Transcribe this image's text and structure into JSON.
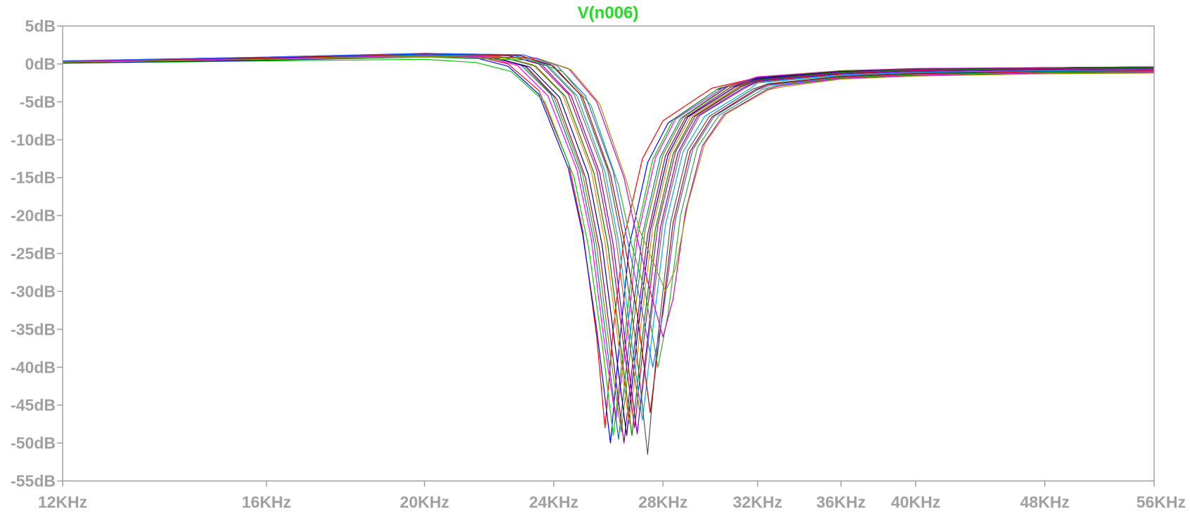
{
  "chart_data": {
    "type": "line",
    "title": "V(n006)",
    "xlabel": "",
    "ylabel": "",
    "x_scale": "log",
    "x_unit": "Hz",
    "xlim": [
      12000,
      56000
    ],
    "ylim": [
      -55,
      5
    ],
    "y_unit": "dB",
    "grid": false,
    "legend": "none",
    "x_tick_values": [
      12000,
      16000,
      20000,
      24000,
      28000,
      32000,
      36000,
      40000,
      48000,
      56000
    ],
    "x_tick_labels": [
      "12KHz",
      "16KHz",
      "20KHz",
      "24KHz",
      "28KHz",
      "32KHz",
      "36KHz",
      "40KHz",
      "48KHz",
      "56KHz"
    ],
    "y_tick_values": [
      5,
      0,
      -5,
      -10,
      -15,
      -20,
      -25,
      -30,
      -35,
      -40,
      -45,
      -50,
      -55
    ],
    "y_tick_labels": [
      "5dB",
      "0dB",
      "-5dB",
      "-10dB",
      "-15dB",
      "-20dB",
      "-25dB",
      "-30dB",
      "-35dB",
      "-40dB",
      "-45dB",
      "-50dB",
      "-55dB"
    ],
    "series_colors": [
      "#ff0000",
      "#0000ff",
      "#00cc00",
      "#ff00ff",
      "#008080",
      "#808000",
      "#800080",
      "#000080",
      "#ff8000",
      "#008000",
      "#cc0066",
      "#6600cc",
      "#996633",
      "#00aaff",
      "#555555",
      "#aa0000",
      "#3366ff",
      "#33aa33",
      "#cc00cc",
      "#999900"
    ],
    "series": [
      {
        "x": [
          12000,
          16000,
          20000,
          21500,
          22500,
          23500,
          24500,
          25000,
          25500,
          25800,
          26100,
          26500,
          27200,
          28000,
          30000,
          32000,
          36000,
          40000,
          48000,
          56000
        ],
        "y": [
          0.3,
          0.7,
          1.1,
          1.0,
          0.0,
          -3.5,
          -13.0,
          -22.0,
          -36.0,
          -48.0,
          -35.0,
          -23.0,
          -12.5,
          -7.5,
          -3.2,
          -1.8,
          -1.0,
          -0.7,
          -0.5,
          -0.4
        ]
      },
      {
        "x": [
          12000,
          16000,
          20000,
          21500,
          22500,
          23500,
          24500,
          25000,
          25500,
          26000,
          26300,
          26700,
          27400,
          28200,
          30200,
          32000,
          36000,
          40000,
          48000,
          56000
        ],
        "y": [
          0.2,
          0.6,
          1.0,
          0.8,
          -0.3,
          -4.0,
          -13.8,
          -22.5,
          -35.0,
          -50.0,
          -38.0,
          -24.0,
          -13.0,
          -7.8,
          -3.4,
          -1.9,
          -1.0,
          -0.7,
          -0.6,
          -0.5
        ]
      },
      {
        "x": [
          12000,
          16000,
          20000,
          21500,
          22600,
          23700,
          24700,
          25200,
          25700,
          26100,
          26500,
          26900,
          27600,
          28400,
          30300,
          32000,
          36000,
          40000,
          48000,
          56000
        ],
        "y": [
          0.1,
          0.4,
          0.6,
          0.2,
          -1.0,
          -5.0,
          -15.0,
          -24.0,
          -37.0,
          -49.0,
          -37.0,
          -23.5,
          -12.6,
          -7.4,
          -3.2,
          -1.8,
          -0.9,
          -0.6,
          -0.5,
          -0.4
        ]
      },
      {
        "x": [
          12000,
          16000,
          20000,
          21700,
          22800,
          23800,
          24800,
          25300,
          25800,
          26200,
          26600,
          27000,
          27700,
          28500,
          30500,
          32000,
          36000,
          40000,
          48000,
          56000
        ],
        "y": [
          0.4,
          0.8,
          1.2,
          1.0,
          -0.2,
          -4.2,
          -14.0,
          -23.0,
          -37.5,
          -47.0,
          -36.0,
          -23.0,
          -12.4,
          -7.3,
          -3.1,
          -1.7,
          -0.9,
          -0.6,
          -0.5,
          -0.4
        ]
      },
      {
        "x": [
          12000,
          16000,
          20000,
          21800,
          22900,
          23900,
          24900,
          25400,
          25900,
          26300,
          26700,
          27200,
          27900,
          28700,
          30600,
          32000,
          36000,
          40000,
          48000,
          56000
        ],
        "y": [
          0.2,
          0.6,
          1.1,
          1.0,
          -0.1,
          -4.0,
          -14.2,
          -23.5,
          -38.0,
          -49.5,
          -36.5,
          -22.5,
          -12.2,
          -7.2,
          -3.1,
          -1.8,
          -0.9,
          -0.7,
          -0.5,
          -0.4
        ]
      },
      {
        "x": [
          12000,
          16000,
          20000,
          21900,
          23000,
          24000,
          25000,
          25500,
          26000,
          26400,
          26800,
          27300,
          28000,
          28800,
          30700,
          32000,
          36000,
          40000,
          48000,
          56000
        ],
        "y": [
          0.3,
          0.7,
          1.2,
          1.0,
          -0.2,
          -4.3,
          -14.5,
          -24.0,
          -38.5,
          -48.5,
          -36.0,
          -22.0,
          -12.0,
          -7.1,
          -3.0,
          -1.8,
          -0.9,
          -0.7,
          -0.5,
          -0.4
        ]
      },
      {
        "x": [
          12000,
          16000,
          20000,
          22000,
          23100,
          24100,
          25100,
          25600,
          26100,
          26500,
          26900,
          27400,
          28100,
          28900,
          30800,
          32000,
          36000,
          40000,
          48000,
          56000
        ],
        "y": [
          0.2,
          0.6,
          1.0,
          0.9,
          -0.4,
          -4.6,
          -15.0,
          -24.5,
          -39.0,
          -50.0,
          -37.0,
          -22.5,
          -12.1,
          -7.1,
          -3.1,
          -1.8,
          -1.0,
          -0.7,
          -0.5,
          -0.4
        ]
      },
      {
        "x": [
          12000,
          16000,
          20000,
          22100,
          23200,
          24200,
          25200,
          25700,
          26200,
          26600,
          27000,
          27500,
          28200,
          29000,
          31000,
          32000,
          36000,
          40000,
          48000,
          56000
        ],
        "y": [
          0.1,
          0.5,
          0.9,
          0.8,
          -0.4,
          -4.4,
          -14.6,
          -24.0,
          -38.0,
          -49.0,
          -36.0,
          -22.0,
          -12.0,
          -7.0,
          -3.0,
          -2.0,
          -1.0,
          -0.8,
          -0.6,
          -0.5
        ]
      },
      {
        "x": [
          12000,
          16000,
          20000,
          22200,
          23300,
          24300,
          25300,
          25800,
          26300,
          26700,
          27100,
          27600,
          28300,
          29100,
          31100,
          32000,
          36000,
          40000,
          48000,
          56000
        ],
        "y": [
          0.3,
          0.7,
          1.1,
          1.0,
          -0.1,
          -4.0,
          -14.0,
          -23.5,
          -37.0,
          -47.5,
          -35.5,
          -21.5,
          -11.8,
          -7.0,
          -3.0,
          -2.1,
          -1.1,
          -0.8,
          -0.6,
          -0.5
        ]
      },
      {
        "x": [
          12000,
          16000,
          20000,
          22300,
          23400,
          24400,
          25400,
          25900,
          26400,
          26800,
          27200,
          27700,
          28400,
          29200,
          31200,
          32000,
          36000,
          40000,
          48000,
          56000
        ],
        "y": [
          0.2,
          0.6,
          1.0,
          0.9,
          -0.3,
          -4.3,
          -14.4,
          -23.8,
          -38.0,
          -49.0,
          -36.0,
          -21.8,
          -11.9,
          -7.0,
          -3.0,
          -2.1,
          -1.1,
          -0.8,
          -0.6,
          -0.5
        ]
      },
      {
        "x": [
          12000,
          16000,
          20000,
          22400,
          23500,
          24500,
          25500,
          26000,
          26500,
          26900,
          27300,
          27800,
          28500,
          29300,
          31300,
          32000,
          36000,
          40000,
          48000,
          56000
        ],
        "y": [
          0.3,
          0.8,
          1.3,
          1.2,
          0.0,
          -4.0,
          -14.0,
          -23.5,
          -37.5,
          -48.0,
          -35.0,
          -21.2,
          -11.6,
          -6.9,
          -3.0,
          -2.2,
          -1.2,
          -0.9,
          -0.7,
          -0.6
        ]
      },
      {
        "x": [
          12000,
          16000,
          20000,
          22500,
          23600,
          24600,
          25600,
          26100,
          26600,
          27000,
          27400,
          27900,
          28600,
          29400,
          31400,
          32000,
          36000,
          40000,
          48000,
          56000
        ],
        "y": [
          0.2,
          0.7,
          1.2,
          1.1,
          -0.1,
          -4.2,
          -14.3,
          -23.8,
          -38.2,
          -48.8,
          -36.2,
          -21.6,
          -11.7,
          -6.9,
          -3.1,
          -2.3,
          -1.3,
          -1.0,
          -0.8,
          -0.7
        ]
      },
      {
        "x": [
          12000,
          16000,
          20000,
          22600,
          23700,
          24700,
          25700,
          26200,
          26700,
          27100,
          27500,
          28000,
          28700,
          29500,
          31500,
          32000,
          36000,
          40000,
          48000,
          56000
        ],
        "y": [
          0.3,
          0.8,
          1.3,
          1.2,
          0.0,
          -4.0,
          -13.8,
          -23.0,
          -36.5,
          -46.0,
          -34.5,
          -21.0,
          -11.5,
          -6.8,
          -3.1,
          -2.4,
          -1.4,
          -1.1,
          -0.9,
          -0.8
        ]
      },
      {
        "x": [
          12000,
          16000,
          20000,
          22700,
          23800,
          24800,
          25800,
          26300,
          26800,
          27200,
          27600,
          28100,
          28800,
          29700,
          31700,
          32000,
          36000,
          40000,
          48000,
          56000
        ],
        "y": [
          0.2,
          0.7,
          1.2,
          1.1,
          -0.2,
          -4.2,
          -14.2,
          -23.5,
          -37.0,
          -47.0,
          -35.0,
          -21.2,
          -11.6,
          -6.9,
          -3.2,
          -2.5,
          -1.5,
          -1.1,
          -0.9,
          -0.8
        ]
      },
      {
        "x": [
          12000,
          16000,
          20000,
          22800,
          23900,
          24900,
          25900,
          26400,
          26900,
          27400,
          27800,
          28300,
          29000,
          29900,
          31800,
          32500,
          36000,
          40000,
          48000,
          56000
        ],
        "y": [
          0.4,
          0.9,
          1.4,
          1.2,
          -0.1,
          -4.0,
          -14.0,
          -23.0,
          -35.5,
          -51.5,
          -36.0,
          -21.0,
          -11.4,
          -6.9,
          -3.3,
          -2.6,
          -1.6,
          -1.2,
          -1.0,
          -0.9
        ]
      },
      {
        "x": [
          12000,
          16000,
          20000,
          22900,
          24000,
          25000,
          26000,
          26500,
          27000,
          27500,
          27900,
          28400,
          29100,
          30000,
          31900,
          32500,
          36000,
          40000,
          48000,
          56000
        ],
        "y": [
          0.3,
          0.8,
          1.3,
          1.1,
          -0.3,
          -4.4,
          -14.6,
          -23.2,
          -33.0,
          -46.0,
          -35.0,
          -21.0,
          -11.5,
          -7.0,
          -3.4,
          -2.7,
          -1.7,
          -1.3,
          -1.0,
          -0.9
        ]
      },
      {
        "x": [
          12000,
          16000,
          20000,
          23000,
          24100,
          25100,
          26100,
          26600,
          27100,
          27600,
          28000,
          28500,
          29200,
          30100,
          32000,
          32600,
          36000,
          40000,
          48000,
          56000
        ],
        "y": [
          0.4,
          0.9,
          1.4,
          1.2,
          -0.2,
          -4.2,
          -14.2,
          -22.8,
          -31.0,
          -40.0,
          -33.0,
          -20.5,
          -11.3,
          -6.9,
          -3.4,
          -2.8,
          -1.8,
          -1.4,
          -1.1,
          -1.0
        ]
      },
      {
        "x": [
          12000,
          16000,
          20000,
          23200,
          24300,
          25300,
          26300,
          26800,
          27300,
          27800,
          28200,
          28700,
          29400,
          30300,
          32200,
          32800,
          36000,
          40000,
          48000,
          56000
        ],
        "y": [
          0.2,
          0.6,
          0.9,
          0.5,
          -1.0,
          -5.5,
          -16.0,
          -24.0,
          -30.0,
          -40.0,
          -33.0,
          -20.0,
          -11.0,
          -6.8,
          -3.4,
          -2.9,
          -1.8,
          -1.4,
          -1.1,
          -1.0
        ]
      },
      {
        "x": [
          12000,
          16000,
          20000,
          23400,
          24500,
          25500,
          26500,
          27000,
          27500,
          28000,
          28400,
          28900,
          29600,
          30500,
          32400,
          33000,
          36000,
          40000,
          48000,
          56000
        ],
        "y": [
          0.3,
          0.7,
          1.1,
          0.8,
          -0.6,
          -5.0,
          -15.0,
          -23.0,
          -30.0,
          -36.0,
          -31.0,
          -19.5,
          -10.8,
          -6.7,
          -3.4,
          -2.9,
          -1.9,
          -1.5,
          -1.2,
          -1.1
        ]
      },
      {
        "x": [
          12000,
          16000,
          20000,
          23500,
          24600,
          25600,
          26600,
          27100,
          27600,
          28100,
          28500,
          29000,
          29700,
          30600,
          32500,
          33200,
          36000,
          40000,
          48000,
          56000
        ],
        "y": [
          0.2,
          0.6,
          1.0,
          0.7,
          -0.8,
          -5.2,
          -15.5,
          -22.0,
          -26.0,
          -30.0,
          -27.0,
          -18.5,
          -10.5,
          -6.6,
          -3.4,
          -3.0,
          -2.0,
          -1.6,
          -1.3,
          -1.2
        ]
      }
    ]
  }
}
